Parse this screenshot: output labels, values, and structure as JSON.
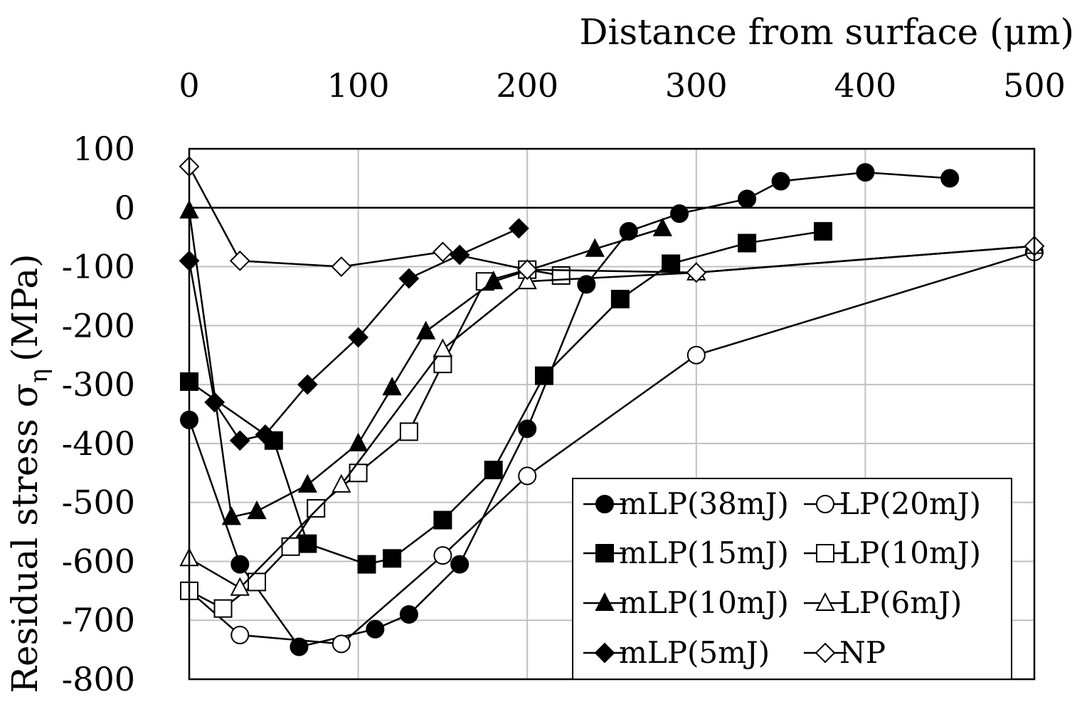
{
  "chart_data": {
    "type": "line",
    "title": "",
    "xlabel": "Distance from surface (μm)",
    "ylabel": "Residual stress σ",
    "ylabel_subscript": "η",
    "ylabel_unit": "(MPa)",
    "xlim": [
      0,
      500
    ],
    "ylim": [
      -800,
      100
    ],
    "x_axis_position": "top",
    "xticks": [
      0,
      100,
      200,
      300,
      400,
      500
    ],
    "yticks": [
      100,
      0,
      -100,
      -200,
      -300,
      -400,
      -500,
      -600,
      -700,
      -800
    ],
    "grid": true,
    "legend_position": "bottom-right",
    "colors": {
      "line": "#000000",
      "grid": "#c0c0c0",
      "background": "#ffffff"
    },
    "series": [
      {
        "name": "mLP(38mJ)",
        "marker": "circle",
        "filled": true,
        "x": [
          0,
          30,
          65,
          110,
          130,
          160,
          200,
          235,
          260,
          290,
          330,
          350,
          400,
          450
        ],
        "y": [
          -360,
          -605,
          -745,
          -715,
          -690,
          -605,
          -375,
          -130,
          -40,
          -10,
          15,
          45,
          60,
          50
        ]
      },
      {
        "name": "LP(20mJ)",
        "marker": "circle",
        "filled": false,
        "x": [
          0,
          30,
          90,
          150,
          200,
          300,
          500
        ],
        "y": [
          -650,
          -725,
          -740,
          -590,
          -455,
          -250,
          -75
        ]
      },
      {
        "name": "mLP(15mJ)",
        "marker": "square",
        "filled": true,
        "x": [
          0,
          50,
          70,
          105,
          120,
          150,
          180,
          210,
          255,
          285,
          330,
          375
        ],
        "y": [
          -295,
          -395,
          -570,
          -605,
          -595,
          -530,
          -445,
          -285,
          -155,
          -95,
          -60,
          -40
        ]
      },
      {
        "name": "LP(10mJ)",
        "marker": "square",
        "filled": false,
        "x": [
          0,
          20,
          40,
          60,
          75,
          100,
          130,
          150,
          175,
          200,
          220
        ],
        "y": [
          -650,
          -680,
          -635,
          -575,
          -510,
          -450,
          -380,
          -265,
          -125,
          -105,
          -115
        ]
      },
      {
        "name": "mLP(10mJ)",
        "marker": "triangle",
        "filled": true,
        "x": [
          0,
          25,
          40,
          70,
          100,
          120,
          140,
          180,
          240,
          280
        ],
        "y": [
          -5,
          -525,
          -515,
          -470,
          -400,
          -305,
          -210,
          -125,
          -70,
          -35
        ]
      },
      {
        "name": "LP(6mJ)",
        "marker": "triangle",
        "filled": false,
        "x": [
          0,
          30,
          90,
          150,
          200,
          300,
          500
        ],
        "y": [
          -595,
          -645,
          -470,
          -240,
          -125,
          -110,
          -65
        ]
      },
      {
        "name": "mLP(5mJ)",
        "marker": "diamond",
        "filled": true,
        "x": [
          0,
          15,
          30,
          45,
          70,
          100,
          130,
          160,
          195
        ],
        "y": [
          -90,
          -330,
          -395,
          -385,
          -300,
          -220,
          -120,
          -80,
          -35
        ]
      },
      {
        "name": "NP",
        "marker": "diamond",
        "filled": false,
        "x": [
          0,
          30,
          90,
          150,
          200,
          300,
          500
        ],
        "y": [
          70,
          -90,
          -100,
          -75,
          -105,
          -110,
          -65
        ]
      }
    ]
  }
}
